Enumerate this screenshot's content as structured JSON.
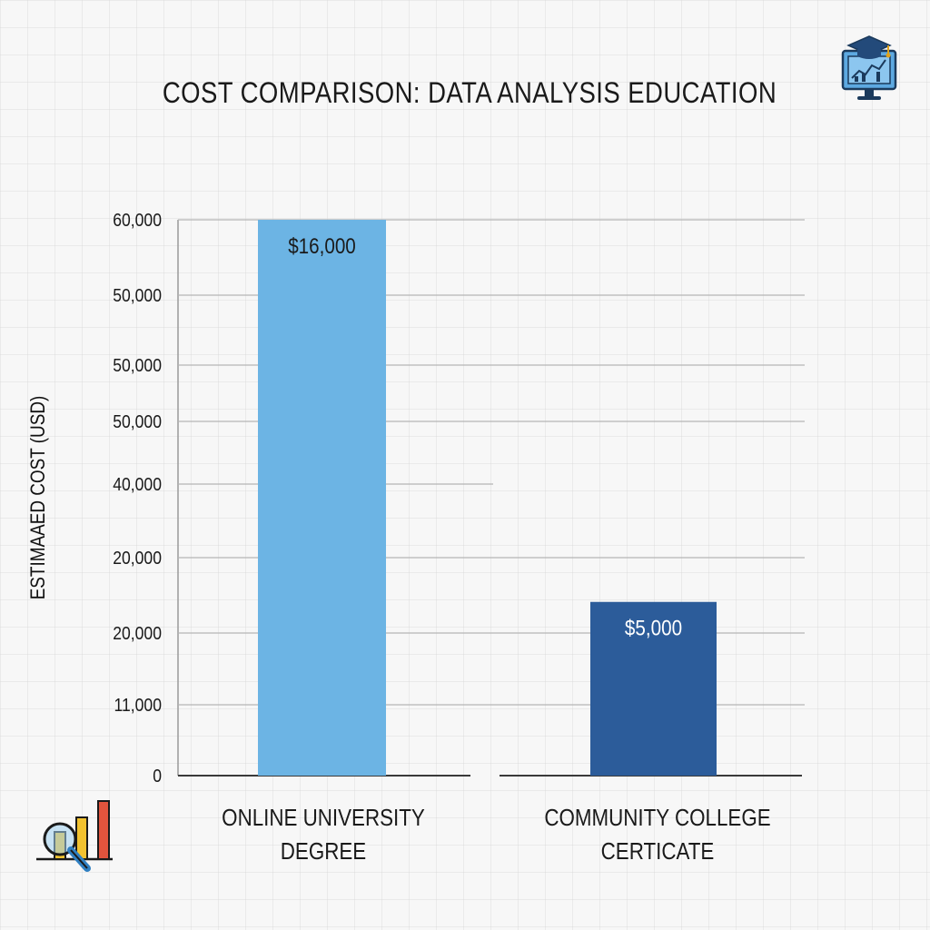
{
  "chart_data": {
    "type": "bar",
    "title": "COST COMPARISON: DATA ANALYSIS EDUCATION",
    "ylabel": "ESTIMAAED COST (USD)",
    "xlabel": "",
    "y_tick_labels": [
      "60,000",
      "50,000",
      "50,000",
      "50,000",
      "40,000",
      "20,000",
      "20,000",
      "11,000",
      "0"
    ],
    "categories": [
      [
        "ONLINE UNIVERSITY",
        "DEGREE"
      ],
      [
        "COMMUNITY COLLEGE",
        "CERTICATE"
      ]
    ],
    "values": [
      16000,
      5000
    ],
    "data_labels": [
      "$16,000",
      "$5,000"
    ],
    "colors": [
      "#6cb4e4",
      "#2c5c9a"
    ],
    "label_colors": [
      "#1a1a1a",
      "#ffffff"
    ],
    "grid": true
  },
  "icons": {
    "top_right": "monitor-graduation-chart-icon",
    "bottom_left": "bar-chart-magnifier-icon"
  }
}
